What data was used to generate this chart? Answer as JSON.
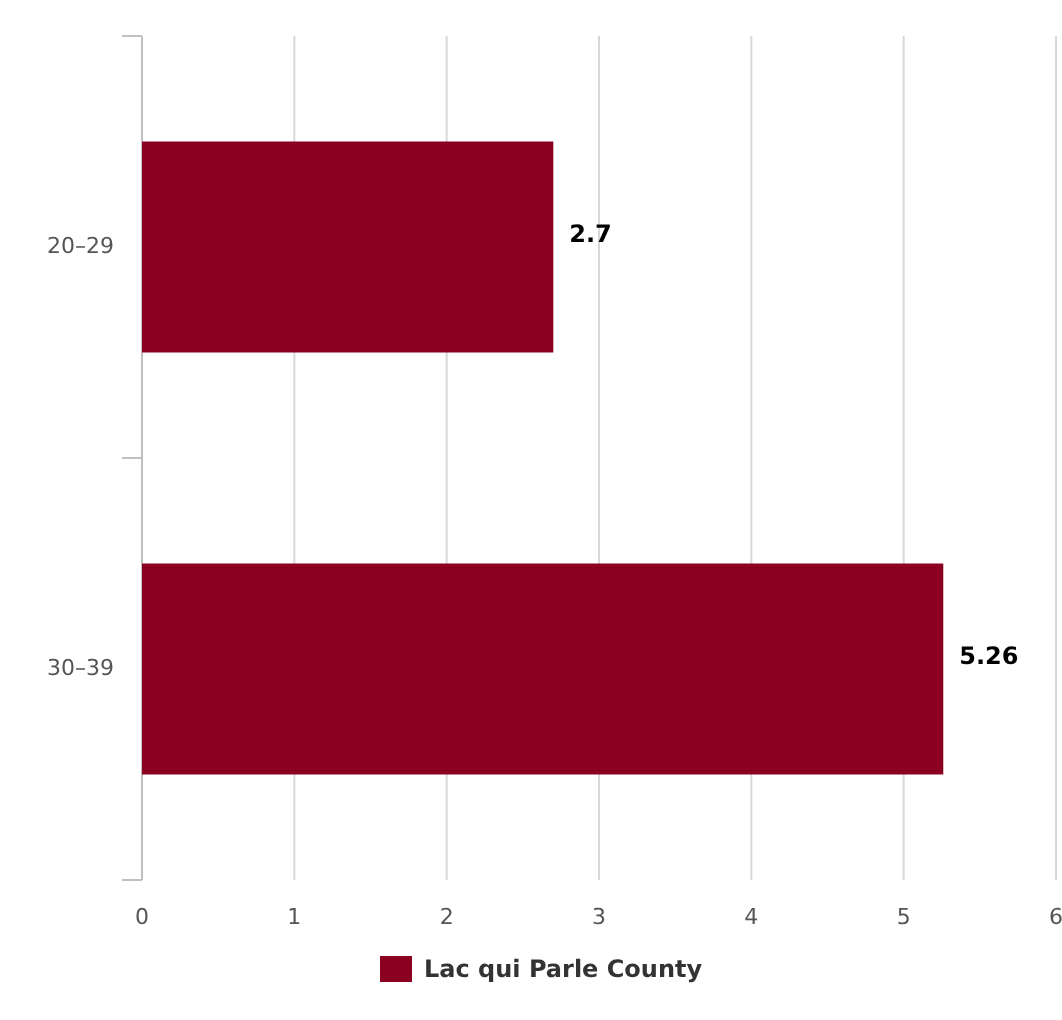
{
  "chart_data": {
    "type": "bar",
    "orientation": "horizontal",
    "categories": [
      "20–29",
      "30–39"
    ],
    "series": [
      {
        "name": "Lac qui Parle County",
        "color": "#8b0020",
        "values": [
          2.7,
          5.26
        ]
      }
    ],
    "xlim": [
      0,
      6
    ],
    "xticks": [
      0,
      1,
      2,
      3,
      4,
      5,
      6
    ],
    "grid": "x",
    "legend": "bottom",
    "data_labels": true
  }
}
